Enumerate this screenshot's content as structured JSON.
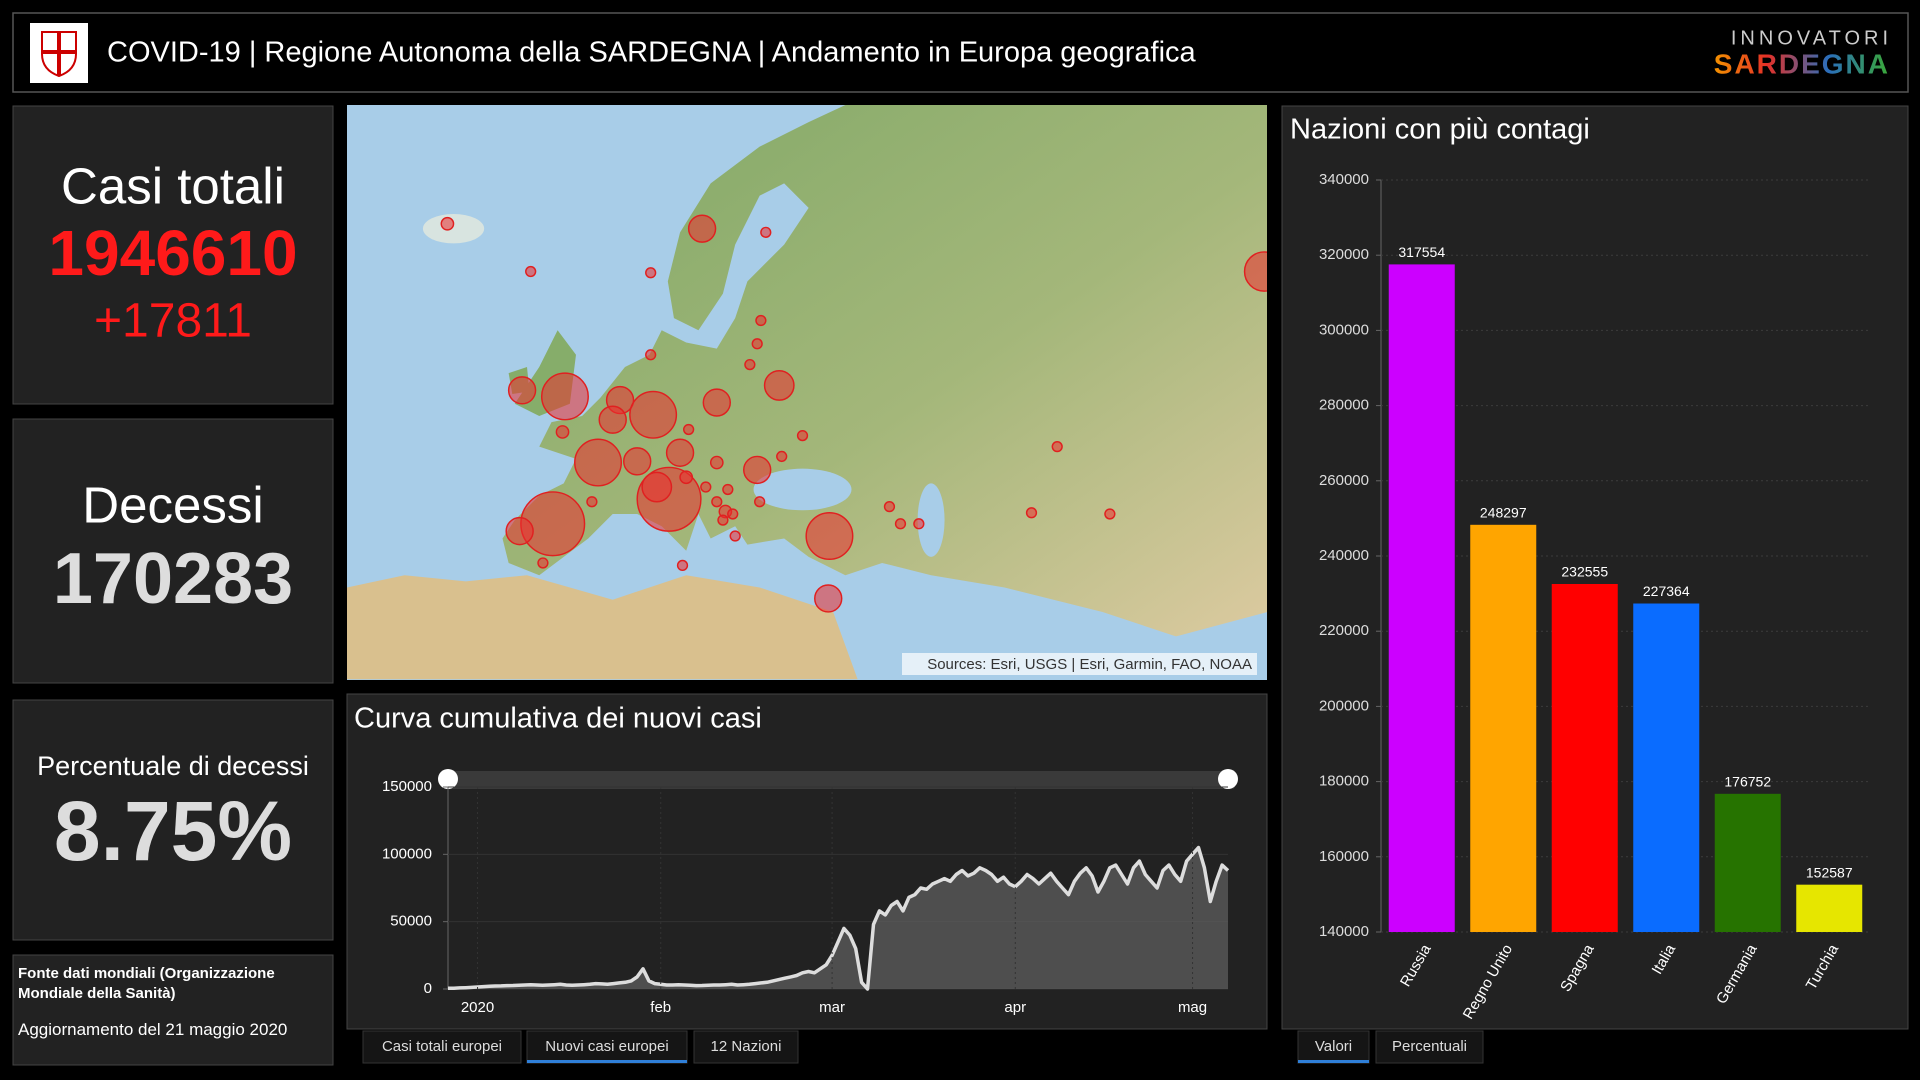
{
  "header": {
    "title": "COVID-19 | Regione Autonoma della SARDEGNA | Andamento in Europa geografica",
    "brand_top": "INNOVATORI",
    "brand_bottom": "SARDEGNA"
  },
  "kpis": [
    {
      "label": "Casi totali",
      "value": 1946610,
      "delta": "+17811"
    },
    {
      "label": "Decessi",
      "value": 170283
    },
    {
      "label": "Percentuale di decessi",
      "value": "8.75%"
    }
  ],
  "source": {
    "title": "Fonte dati mondiali (Organizzazione Mondiale della Sanità)",
    "updated": "Aggiornamento del 21 maggio 2020"
  },
  "map": {
    "attribution": "Sources: Esri, USGS | Esri, Garmin, FAO, NOAA"
  },
  "chart_data": [
    {
      "type": "bar",
      "title": "Nazioni con più contagi",
      "categories": [
        "Russia",
        "Regno Unito",
        "Spagna",
        "Italia",
        "Germania",
        "Turchia"
      ],
      "values": [
        317554,
        248297,
        232555,
        227364,
        176752,
        152587
      ],
      "colors": [
        "#cc00ff",
        "#ffa500",
        "#ff0000",
        "#0a6cff",
        "#267300",
        "#e6e600"
      ],
      "ylim": [
        140000,
        340000
      ],
      "yticks": [
        140000,
        160000,
        180000,
        200000,
        220000,
        240000,
        260000,
        280000,
        300000,
        320000,
        340000
      ],
      "grid": true
    },
    {
      "type": "area",
      "title": "Curva cumulativa dei nuovi casi",
      "categories": [
        null,
        null,
        null,
        null,
        null,
        "2020",
        null,
        null,
        null,
        null,
        null,
        null,
        null,
        null,
        null,
        null,
        null,
        null,
        null,
        null,
        null,
        null,
        null,
        null,
        null,
        null,
        null,
        null,
        null,
        null,
        null,
        null,
        null,
        null,
        null,
        null,
        "feb",
        null,
        null,
        null,
        null,
        null,
        null,
        null,
        null,
        null,
        null,
        null,
        null,
        null,
        null,
        null,
        null,
        null,
        null,
        null,
        null,
        null,
        null,
        null,
        null,
        null,
        null,
        null,
        null,
        "mar",
        null,
        null,
        null,
        null,
        null,
        null,
        null,
        null,
        null,
        null,
        null,
        null,
        null,
        null,
        null,
        null,
        null,
        null,
        null,
        null,
        null,
        null,
        null,
        null,
        null,
        null,
        null,
        null,
        null,
        null,
        "apr",
        null,
        null,
        null,
        null,
        null,
        null,
        null,
        null,
        null,
        null,
        null,
        null,
        null,
        null,
        null,
        null,
        null,
        null,
        null,
        null,
        null,
        null,
        null,
        null,
        null,
        null,
        null,
        null,
        null,
        "mag",
        null,
        null,
        null,
        null,
        null,
        null
      ],
      "values": [
        500,
        600,
        800,
        1000,
        1200,
        1500,
        1800,
        2000,
        2200,
        2300,
        2500,
        2600,
        2800,
        3000,
        3200,
        3000,
        2800,
        3000,
        3200,
        3500,
        3000,
        2800,
        3000,
        3200,
        3500,
        4000,
        3800,
        3500,
        4000,
        4500,
        5000,
        6000,
        9000,
        15000,
        6000,
        4000,
        3500,
        3000,
        3000,
        3200,
        3000,
        2800,
        2500,
        2600,
        2800,
        3000,
        3000,
        3200,
        3500,
        3000,
        3200,
        3500,
        4000,
        4500,
        5000,
        6000,
        7000,
        8000,
        9000,
        10000,
        12000,
        13000,
        12000,
        15000,
        18000,
        25000,
        35000,
        45000,
        40000,
        30000,
        5000,
        0,
        48000,
        58000,
        55000,
        62000,
        65000,
        58000,
        68000,
        70000,
        75000,
        74000,
        78000,
        80000,
        82000,
        80000,
        85000,
        88000,
        84000,
        86000,
        90000,
        88000,
        85000,
        80000,
        83000,
        78000,
        76000,
        80000,
        85000,
        82000,
        78000,
        82000,
        86000,
        80000,
        75000,
        70000,
        80000,
        86000,
        90000,
        84000,
        72000,
        80000,
        90000,
        92000,
        85000,
        78000,
        90000,
        95000,
        85000,
        80000,
        75000,
        88000,
        92000,
        85000,
        80000,
        95000,
        100000,
        105000,
        90000,
        65000,
        80000,
        92000,
        88000
      ],
      "color": "#dddddd",
      "ylim": [
        0,
        150000
      ],
      "yticks": [
        0,
        50000,
        100000,
        150000
      ],
      "grid": true
    }
  ],
  "tabs_left": [
    "Casi totali europei",
    "Nuovi casi europei",
    "12 Nazioni"
  ],
  "tabs_right": [
    "Valori",
    "Percentuali"
  ]
}
